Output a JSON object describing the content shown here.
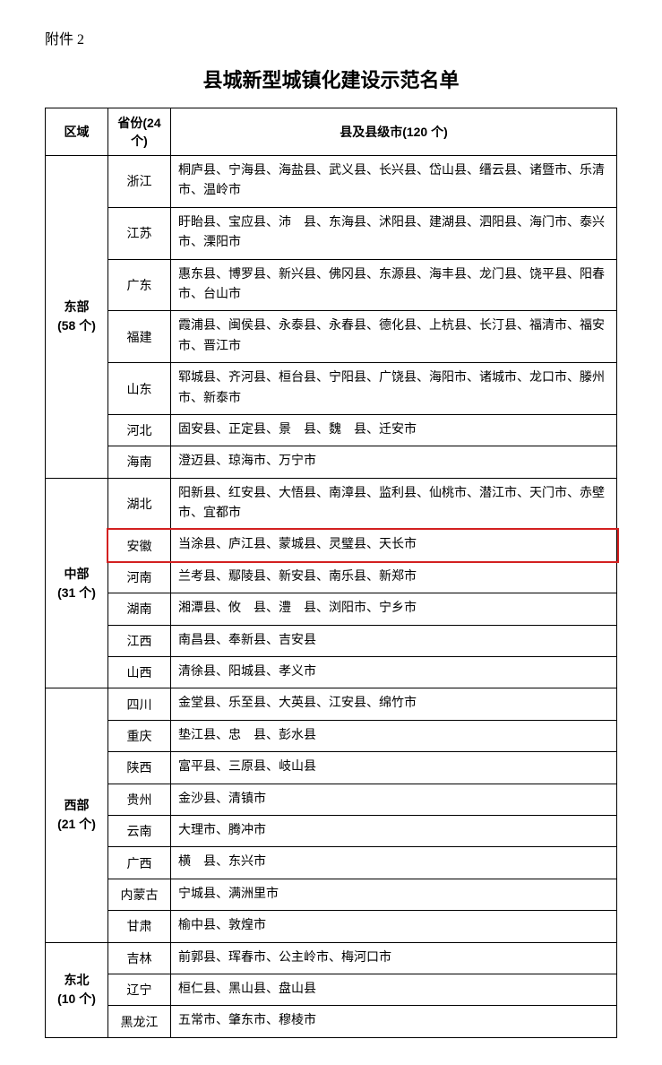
{
  "attachment_label": "附件 2",
  "title": "县城新型城镇化建设示范名单",
  "headers": {
    "region": "区域",
    "province": "省份(24 个)",
    "cities": "县及县级市(120 个)"
  },
  "highlight_color": "#d32020",
  "border_color": "#000000",
  "background_color": "#ffffff",
  "text_color": "#000000",
  "regions": [
    {
      "name": "东部",
      "count": "(58 个)",
      "rows": [
        {
          "province": "浙江",
          "cities": "桐庐县、宁海县、海盐县、武义县、长兴县、岱山县、缙云县、诸暨市、乐清市、温岭市"
        },
        {
          "province": "江苏",
          "cities": "盱眙县、宝应县、沛　县、东海县、沭阳县、建湖县、泗阳县、海门市、泰兴市、溧阳市"
        },
        {
          "province": "广东",
          "cities": "惠东县、博罗县、新兴县、佛冈县、东源县、海丰县、龙门县、饶平县、阳春市、台山市"
        },
        {
          "province": "福建",
          "cities": "霞浦县、闽侯县、永泰县、永春县、德化县、上杭县、长汀县、福清市、福安市、晋江市"
        },
        {
          "province": "山东",
          "cities": "郓城县、齐河县、桓台县、宁阳县、广饶县、海阳市、诸城市、龙口市、滕州市、新泰市"
        },
        {
          "province": "河北",
          "cities": "固安县、正定县、景　县、魏　县、迁安市"
        },
        {
          "province": "海南",
          "cities": "澄迈县、琼海市、万宁市"
        }
      ]
    },
    {
      "name": "中部",
      "count": "(31 个)",
      "rows": [
        {
          "province": "湖北",
          "cities": "阳新县、红安县、大悟县、南漳县、监利县、仙桃市、潜江市、天门市、赤壁市、宜都市"
        },
        {
          "province": "安徽",
          "cities": "当涂县、庐江县、蒙城县、灵璧县、天长市",
          "highlight": true
        },
        {
          "province": "河南",
          "cities": "兰考县、鄢陵县、新安县、南乐县、新郑市"
        },
        {
          "province": "湖南",
          "cities": "湘潭县、攸　县、澧　县、浏阳市、宁乡市"
        },
        {
          "province": "江西",
          "cities": "南昌县、奉新县、吉安县"
        },
        {
          "province": "山西",
          "cities": "清徐县、阳城县、孝义市"
        }
      ]
    },
    {
      "name": "西部",
      "count": "(21 个)",
      "rows": [
        {
          "province": "四川",
          "cities": "金堂县、乐至县、大英县、江安县、绵竹市"
        },
        {
          "province": "重庆",
          "cities": "垫江县、忠　县、彭水县"
        },
        {
          "province": "陕西",
          "cities": "富平县、三原县、岐山县"
        },
        {
          "province": "贵州",
          "cities": "金沙县、清镇市"
        },
        {
          "province": "云南",
          "cities": "大理市、腾冲市"
        },
        {
          "province": "广西",
          "cities": "横　县、东兴市"
        },
        {
          "province": "内蒙古",
          "cities": "宁城县、满洲里市"
        },
        {
          "province": "甘肃",
          "cities": "榆中县、敦煌市"
        }
      ]
    },
    {
      "name": "东北",
      "count": "(10 个)",
      "rows": [
        {
          "province": "吉林",
          "cities": "前郭县、珲春市、公主岭市、梅河口市"
        },
        {
          "province": "辽宁",
          "cities": "桓仁县、黑山县、盘山县"
        },
        {
          "province": "黑龙江",
          "cities": "五常市、肇东市、穆棱市"
        }
      ]
    }
  ]
}
